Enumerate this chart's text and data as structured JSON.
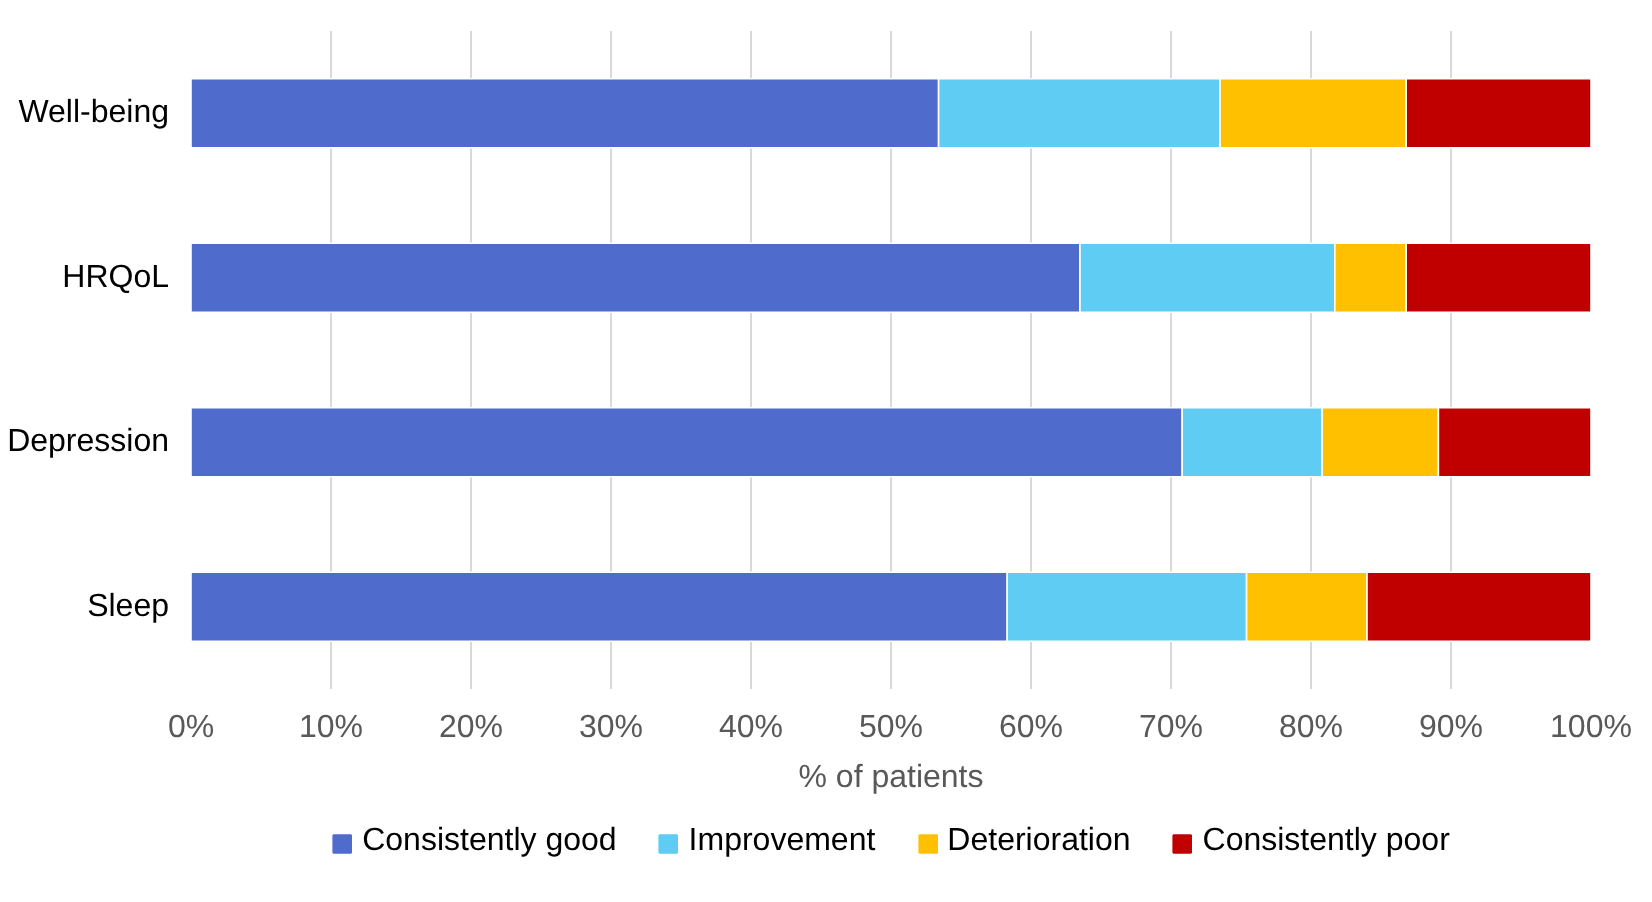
{
  "chart_data": {
    "type": "bar",
    "orientation": "horizontal",
    "stacked": true,
    "xlabel": "% of patients",
    "categories": [
      "Well-being",
      "HRQoL",
      "Depression",
      "Sleep"
    ],
    "series": [
      {
        "name": "Consistently good",
        "color": "#4f6bcb",
        "values": [
          53.4,
          63.5,
          70.8,
          58.3
        ]
      },
      {
        "name": "Improvement",
        "color": "#5fcdf3",
        "values": [
          20.1,
          18.2,
          10.0,
          17.1
        ]
      },
      {
        "name": "Deterioration",
        "color": "#ffc000",
        "values": [
          13.3,
          5.1,
          8.3,
          8.6
        ]
      },
      {
        "name": "Consistently poor",
        "color": "#c00000",
        "values": [
          13.2,
          13.2,
          10.9,
          16.0
        ]
      }
    ],
    "xlim": [
      0,
      100
    ],
    "xticks": [
      {
        "value": 0,
        "label": "0%"
      },
      {
        "value": 10,
        "label": "10%"
      },
      {
        "value": 20,
        "label": "20%"
      },
      {
        "value": 30,
        "label": "30%"
      },
      {
        "value": 40,
        "label": "40%"
      },
      {
        "value": 50,
        "label": "50%"
      },
      {
        "value": 60,
        "label": "60%"
      },
      {
        "value": 70,
        "label": "70%"
      },
      {
        "value": 80,
        "label": "80%"
      },
      {
        "value": 90,
        "label": "90%"
      },
      {
        "value": 100,
        "label": "100%"
      }
    ],
    "grid": "x",
    "legend": "bottom"
  }
}
